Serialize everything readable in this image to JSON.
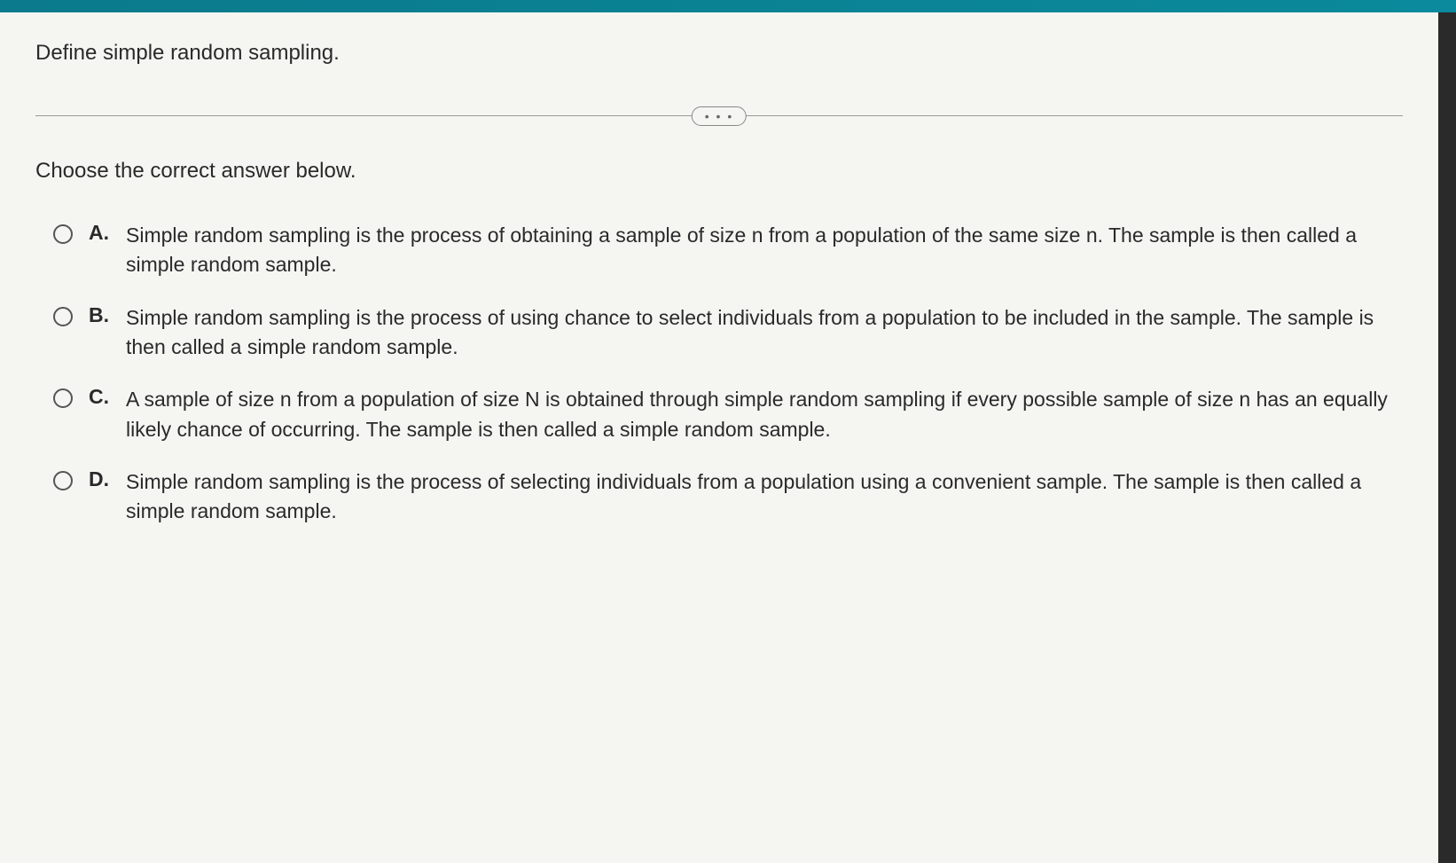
{
  "colors": {
    "topbar": "#0a8a9c",
    "panel_bg": "#f5f5f2",
    "text": "#2a2a2a",
    "divider": "#999999",
    "radio_border": "#555555",
    "accent": "#f0c44c",
    "frame_bg": "#2a2a2a"
  },
  "question": "Define simple random sampling.",
  "divider_dots": "• • •",
  "instruction": "Choose the correct answer below.",
  "options": [
    {
      "letter": "A.",
      "text": "Simple random sampling is the process of obtaining a sample of size n from a population of the same size n. The sample is then called a simple random sample."
    },
    {
      "letter": "B.",
      "text": "Simple random sampling is the process of using chance to select individuals from a population to be included in the sample. The sample is then called a simple random sample."
    },
    {
      "letter": "C.",
      "text": "A sample of size n from a population of size N is obtained through simple random sampling if every possible sample of size n has an equally likely chance of occurring. The sample is then called a simple random sample."
    },
    {
      "letter": "D.",
      "text": "Simple random sampling is the process of selecting individuals from a population using a convenient sample. The sample is then called a simple random sample."
    }
  ]
}
